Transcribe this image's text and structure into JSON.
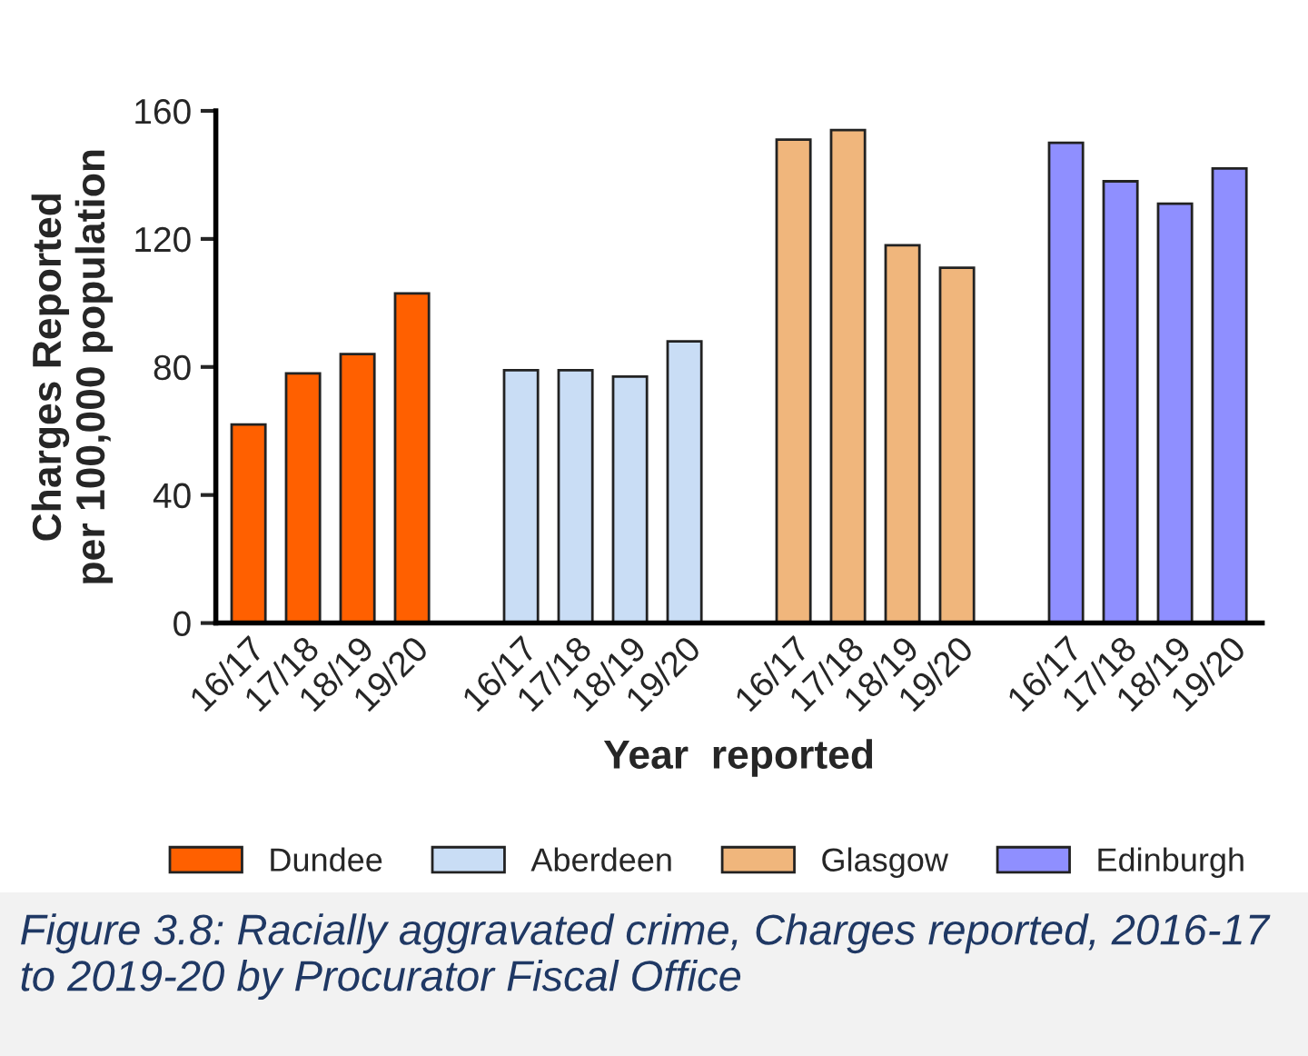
{
  "chart_data": {
    "type": "bar",
    "categories": [
      "16/17",
      "17/18",
      "18/19",
      "19/20",
      null,
      "16/17",
      "17/18",
      "18/19",
      "19/20",
      null,
      "16/17",
      "17/18",
      "18/19",
      "19/20",
      null,
      "16/17",
      "17/18",
      "18/19",
      "19/20"
    ],
    "series": [
      {
        "name": "Dundee",
        "color": "#ff6000",
        "values": [
          62,
          78,
          84,
          103,
          null,
          null,
          null,
          null,
          null,
          null,
          null,
          null,
          null,
          null,
          null,
          null,
          null,
          null,
          null
        ]
      },
      {
        "name": "Aberdeen",
        "color": "#c9ddf5",
        "values": [
          null,
          null,
          null,
          null,
          null,
          79,
          79,
          77,
          88,
          null,
          null,
          null,
          null,
          null,
          null,
          null,
          null,
          null,
          null
        ]
      },
      {
        "name": "Glasgow",
        "color": "#f0b67c",
        "values": [
          null,
          null,
          null,
          null,
          null,
          null,
          null,
          null,
          null,
          null,
          151,
          154,
          118,
          111,
          null,
          null,
          null,
          null,
          null
        ]
      },
      {
        "name": "Edinburgh",
        "color": "#8f8fff",
        "values": [
          null,
          null,
          null,
          null,
          null,
          null,
          null,
          null,
          null,
          null,
          null,
          null,
          null,
          null,
          null,
          150,
          138,
          131,
          142
        ]
      }
    ],
    "xlabel": "Year  reported",
    "ylabel": "Charges Reported\nper 100,000 population",
    "ylim": [
      0,
      160
    ],
    "yticks": [
      0,
      40,
      80,
      120,
      160
    ],
    "grid": false,
    "legend": "bottom",
    "annotations": [
      "Figure 3.8: Racially aggravated crime, Charges reported, 2016-17 to 2019-20 by Procurator Fiscal Office"
    ]
  }
}
